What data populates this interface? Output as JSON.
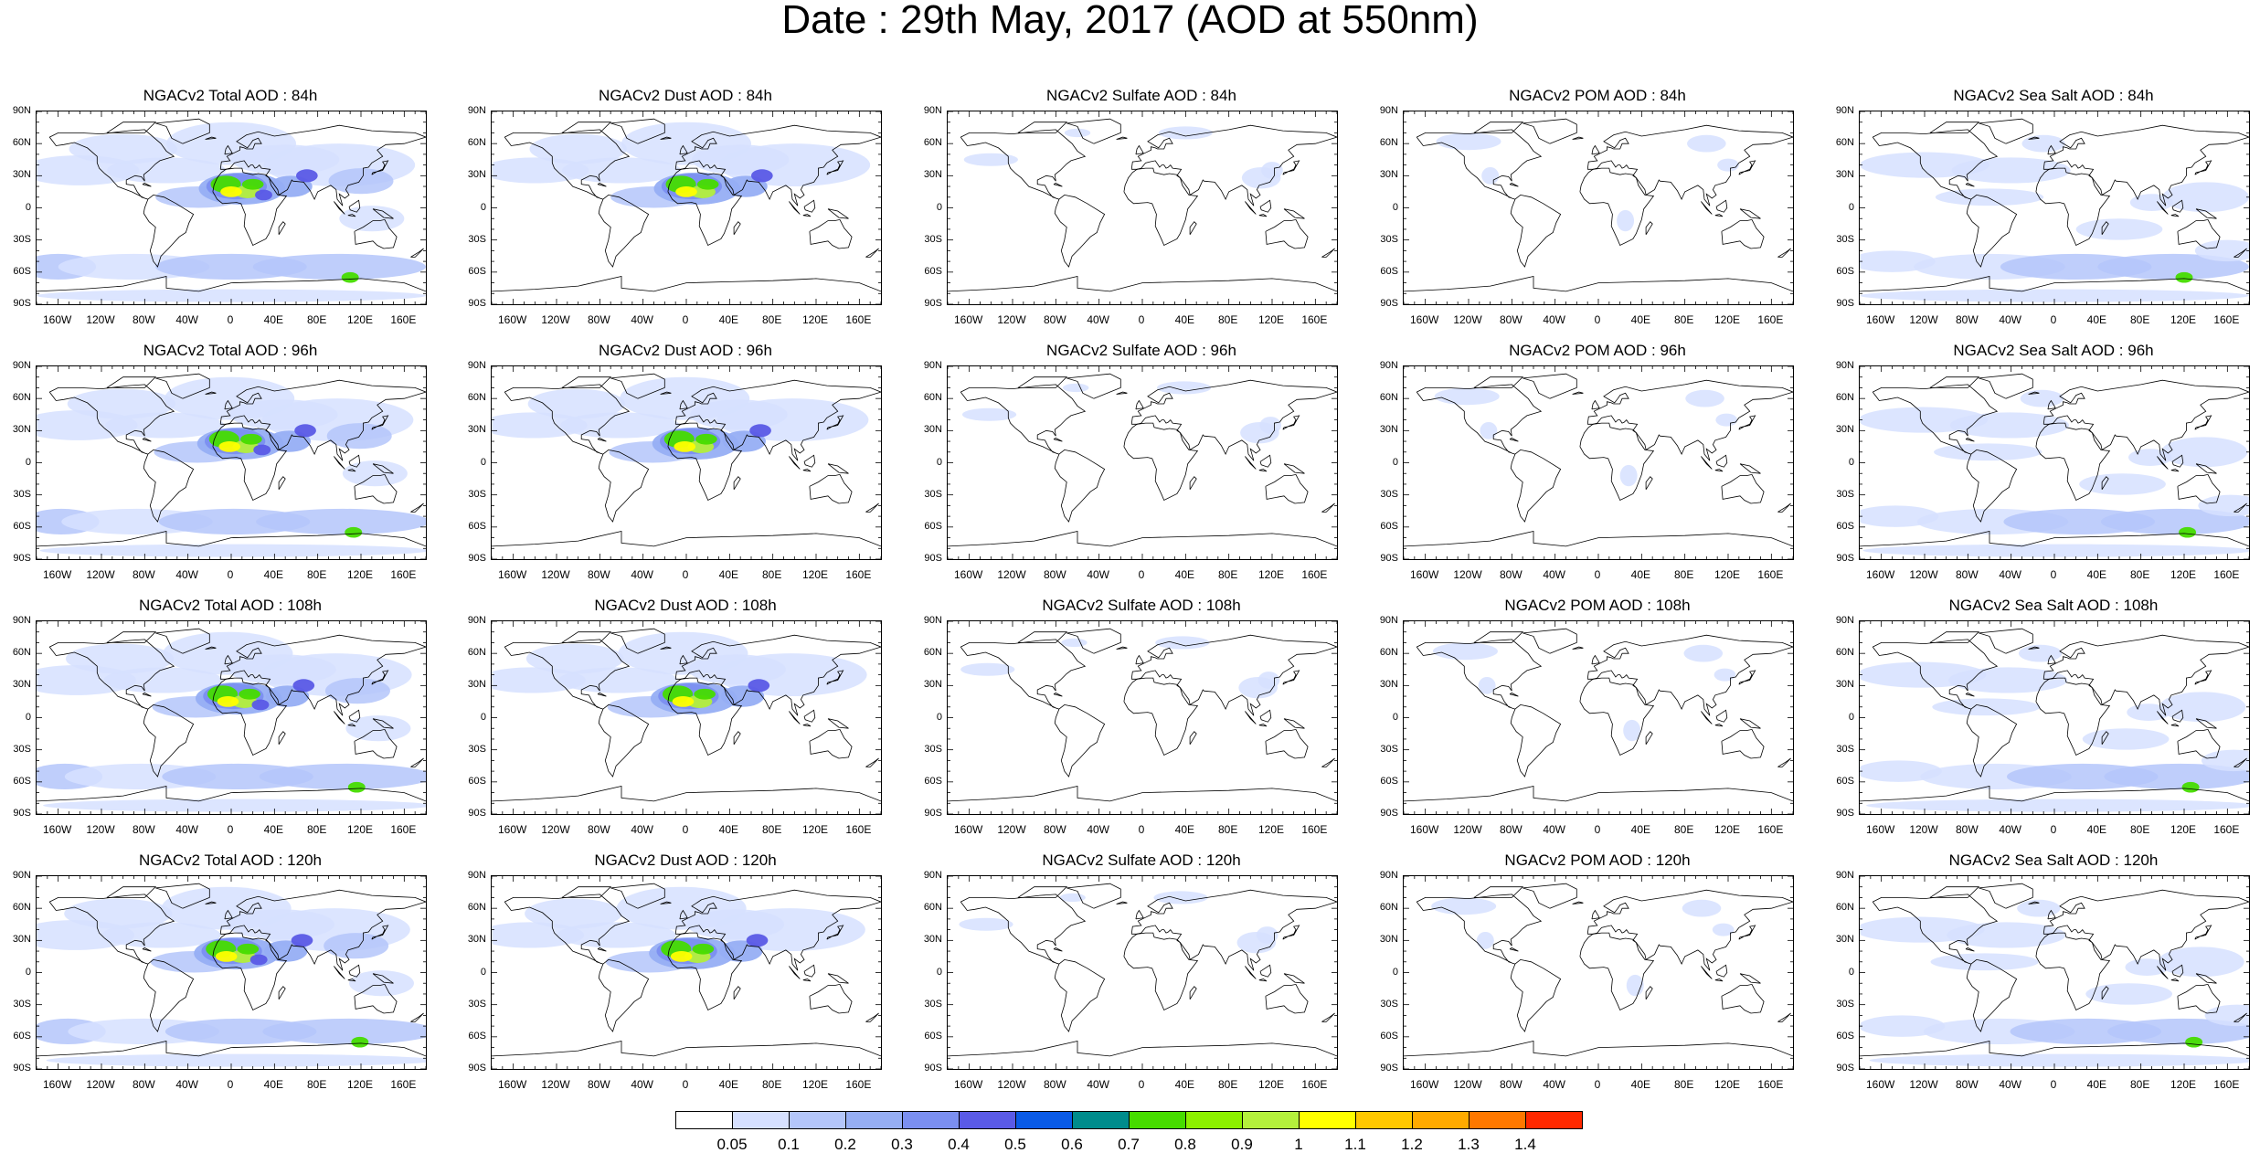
{
  "title": "Date : 29th May, 2017 (AOD at 550nm)",
  "lat_ticks": [
    "90N",
    "60N",
    "30N",
    "0",
    "30S",
    "60S",
    "90S"
  ],
  "lon_ticks": [
    "160W",
    "120W",
    "80W",
    "40W",
    "0",
    "40E",
    "80E",
    "120E",
    "160E"
  ],
  "panels": [
    {
      "title": "NGACv2 Total AOD : 84h",
      "species": "total",
      "hour": 84
    },
    {
      "title": "NGACv2 Dust AOD : 84h",
      "species": "dust",
      "hour": 84
    },
    {
      "title": "NGACv2 Sulfate AOD : 84h",
      "species": "sulfate",
      "hour": 84
    },
    {
      "title": "NGACv2 POM AOD : 84h",
      "species": "pom",
      "hour": 84
    },
    {
      "title": "NGACv2 Sea Salt AOD : 84h",
      "species": "seasalt",
      "hour": 84
    },
    {
      "title": "NGACv2 Total AOD : 96h",
      "species": "total",
      "hour": 96
    },
    {
      "title": "NGACv2 Dust AOD : 96h",
      "species": "dust",
      "hour": 96
    },
    {
      "title": "NGACv2 Sulfate AOD : 96h",
      "species": "sulfate",
      "hour": 96
    },
    {
      "title": "NGACv2 POM AOD : 96h",
      "species": "pom",
      "hour": 96
    },
    {
      "title": "NGACv2 Sea Salt AOD : 96h",
      "species": "seasalt",
      "hour": 96
    },
    {
      "title": "NGACv2 Total AOD : 108h",
      "species": "total",
      "hour": 108
    },
    {
      "title": "NGACv2 Dust AOD : 108h",
      "species": "dust",
      "hour": 108
    },
    {
      "title": "NGACv2 Sulfate AOD : 108h",
      "species": "sulfate",
      "hour": 108
    },
    {
      "title": "NGACv2 POM AOD : 108h",
      "species": "pom",
      "hour": 108
    },
    {
      "title": "NGACv2 Sea Salt AOD : 108h",
      "species": "seasalt",
      "hour": 108
    },
    {
      "title": "NGACv2 Total AOD : 120h",
      "species": "total",
      "hour": 120
    },
    {
      "title": "NGACv2 Dust AOD : 120h",
      "species": "dust",
      "hour": 120
    },
    {
      "title": "NGACv2 Sulfate AOD : 120h",
      "species": "sulfate",
      "hour": 120
    },
    {
      "title": "NGACv2 POM AOD : 120h",
      "species": "pom",
      "hour": 120
    },
    {
      "title": "NGACv2 Sea Salt  AOD : 120h",
      "species": "seasalt",
      "hour": 120
    }
  ],
  "colorbar": {
    "colors": [
      "#ffffff",
      "#d6e0ff",
      "#b4c6fa",
      "#96aef4",
      "#7b8ff0",
      "#5a5ae6",
      "#0a5ae6",
      "#008c8c",
      "#46dc00",
      "#8cf000",
      "#b4f03c",
      "#ffff00",
      "#ffc800",
      "#ffaa00",
      "#ff7800",
      "#ff2800"
    ],
    "labels": [
      "0.05",
      "0.1",
      "0.2",
      "0.3",
      "0.4",
      "0.5",
      "0.6",
      "0.7",
      "0.8",
      "0.9",
      "1",
      "1.1",
      "1.2",
      "1.3",
      "1.4"
    ]
  },
  "chart_data": {
    "type": "heatmap",
    "title": "Date : 29th May, 2017 (AOD at 550nm)",
    "projection": "cylindrical equidistant",
    "lon_range": [
      -180,
      180
    ],
    "lat_range": [
      -90,
      90
    ],
    "rows_forecast_hours": [
      84,
      96,
      108,
      120
    ],
    "columns_species": [
      "Total",
      "Dust",
      "Sulfate",
      "POM",
      "Sea Salt"
    ],
    "contour_levels": [
      0.05,
      0.1,
      0.2,
      0.3,
      0.4,
      0.5,
      0.6,
      0.7,
      0.8,
      0.9,
      1,
      1.1,
      1.2,
      1.3,
      1.4
    ]
  }
}
